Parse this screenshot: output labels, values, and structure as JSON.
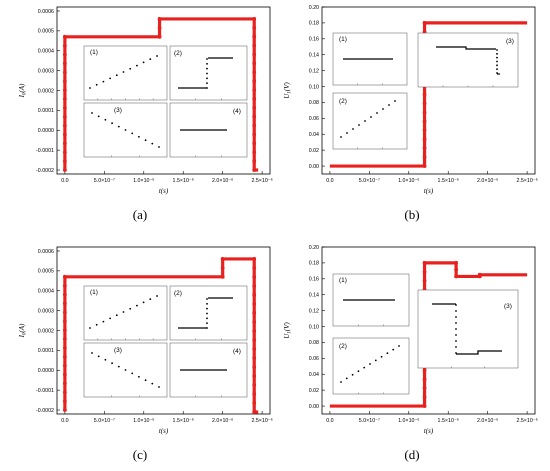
{
  "chart_data": [
    {
      "type": "line",
      "caption": "(a)",
      "xlabel": "t(s)",
      "ylabel": "I_0(A)",
      "xlim": [
        -1e-07,
        2.6e-06
      ],
      "ylim": [
        -0.00022,
        0.00062
      ],
      "xticks": [
        0,
        5e-07,
        1e-06,
        1.5e-06,
        2e-06,
        2.5e-06
      ],
      "xtick_labels": [
        "0.0",
        "5.0×10⁻⁷",
        "1.0×10⁻⁶",
        "1.5×10⁻⁶",
        "2.0×10⁻⁶",
        "2.5×10⁻⁶"
      ],
      "yticks": [
        -0.0002,
        -0.0001,
        0,
        0.0001,
        0.0002,
        0.0003,
        0.0004,
        0.0005,
        0.0006
      ],
      "ytick_labels": [
        "-0.0002",
        "-0.0001",
        "0.0000",
        "0.0001",
        "0.0002",
        "0.0003",
        "0.0004",
        "0.0005",
        "0.0006"
      ],
      "series": [
        {
          "x": [
            0,
            0,
            1.2e-06,
            1.2e-06,
            2.4e-06,
            2.4e-06,
            2.45e-06
          ],
          "y": [
            -0.0002,
            0.00047,
            0.00047,
            0.00056,
            0.00056,
            -0.0002,
            -0.0002
          ]
        }
      ],
      "insets": [
        "(1)",
        "(2)",
        "(3)",
        "(4)"
      ]
    },
    {
      "type": "line",
      "caption": "(b)",
      "xlabel": "t(s)",
      "ylabel": "U_1(V)",
      "xlim": [
        -1e-07,
        2.6e-06
      ],
      "ylim": [
        -0.01,
        0.2
      ],
      "xticks": [
        0,
        5e-07,
        1e-06,
        1.5e-06,
        2e-06,
        2.5e-06
      ],
      "xtick_labels": [
        "0.0",
        "5.0×10⁻⁷",
        "1.0×10⁻⁶",
        "1.5×10⁻⁶",
        "2.0×10⁻⁶",
        "2.5×10⁻⁶"
      ],
      "yticks": [
        0,
        0.02,
        0.04,
        0.06,
        0.08,
        0.1,
        0.12,
        0.14,
        0.16,
        0.18,
        0.2
      ],
      "ytick_labels": [
        "0.00",
        "0.02",
        "0.04",
        "0.06",
        "0.08",
        "0.10",
        "0.12",
        "0.14",
        "0.16",
        "0.18",
        "0.20"
      ],
      "series": [
        {
          "x": [
            0,
            1.2e-06,
            1.2e-06,
            2.5e-06
          ],
          "y": [
            0,
            0,
            0.18,
            0.18
          ]
        }
      ],
      "insets": [
        "(1)",
        "(2)",
        "(3)"
      ]
    },
    {
      "type": "line",
      "caption": "(c)",
      "xlabel": "t(s)",
      "ylabel": "I_0(A)",
      "xlim": [
        -1e-07,
        2.6e-06
      ],
      "ylim": [
        -0.00022,
        0.00062
      ],
      "xticks": [
        0,
        5e-07,
        1e-06,
        1.5e-06,
        2e-06,
        2.5e-06
      ],
      "xtick_labels": [
        "0.0",
        "5.0×10⁻⁷",
        "1.0×10⁻⁶",
        "1.5×10⁻⁶",
        "2.0×10⁻⁶",
        "2.5×10⁻⁶"
      ],
      "yticks": [
        -0.0002,
        -0.0001,
        0,
        0.0001,
        0.0002,
        0.0003,
        0.0004,
        0.0005,
        0.0006
      ],
      "ytick_labels": [
        "-0.0002",
        "-0.0001",
        "0.0000",
        "0.0001",
        "0.0002",
        "0.0003",
        "0.0004",
        "0.0005",
        "0.0006"
      ],
      "series": [
        {
          "x": [
            0,
            0,
            2e-06,
            2e-06,
            2.4e-06,
            2.4e-06,
            2.45e-06
          ],
          "y": [
            -0.0002,
            0.00047,
            0.00047,
            0.00056,
            0.00056,
            -0.00021,
            -0.00021
          ]
        }
      ],
      "insets": [
        "(1)",
        "(2)",
        "(3)",
        "(4)"
      ]
    },
    {
      "type": "line",
      "caption": "(d)",
      "xlabel": "t(s)",
      "ylabel": "U_1(V)",
      "xlim": [
        -1e-07,
        2.6e-06
      ],
      "ylim": [
        -0.01,
        0.2
      ],
      "xticks": [
        0,
        5e-07,
        1e-06,
        1.5e-06,
        2e-06,
        2.5e-06
      ],
      "xtick_labels": [
        "0.0",
        "5.0×10⁻⁷",
        "1.0×10⁻⁶",
        "1.5×10⁻⁶",
        "2.0×10⁻⁶",
        "2.5×10⁻⁶"
      ],
      "yticks": [
        0,
        0.02,
        0.04,
        0.06,
        0.08,
        0.1,
        0.12,
        0.14,
        0.16,
        0.18,
        0.2
      ],
      "ytick_labels": [
        "0.00",
        "0.02",
        "0.04",
        "0.06",
        "0.08",
        "0.10",
        "0.12",
        "0.14",
        "0.16",
        "0.18",
        "0.20"
      ],
      "series": [
        {
          "x": [
            0,
            1.2e-06,
            1.2e-06,
            1.6e-06,
            1.6e-06,
            1.9e-06,
            1.9e-06,
            2.5e-06
          ],
          "y": [
            0,
            0,
            0.18,
            0.18,
            0.163,
            0.163,
            0.165,
            0.165
          ]
        }
      ],
      "insets": [
        "(1)",
        "(2)",
        "(3)"
      ]
    }
  ]
}
